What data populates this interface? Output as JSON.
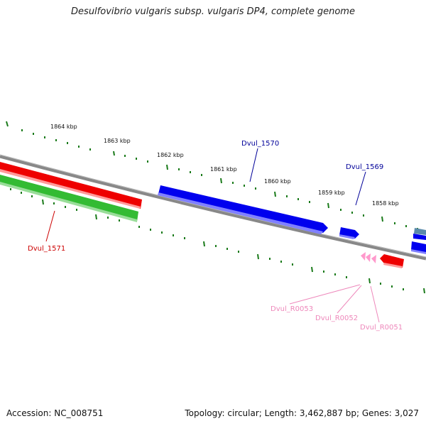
{
  "title": "Desulfovibrio vulgaris subsp. vulgaris DP4, complete genome",
  "footer": {
    "accession": "Accession: NC_008751",
    "stats": "Topology: circular; Length: 3,462,887 bp; Genes: 3,027"
  },
  "ticks": [
    "1864 kbp",
    "1863 kbp",
    "1862 kbp",
    "1861 kbp",
    "1860 kbp",
    "1859 kbp",
    "1858 kbp"
  ],
  "genes": [
    {
      "label": "Dvul_1571",
      "color": "#cc0000"
    },
    {
      "label": "Dvul_1570",
      "color": "#000099"
    },
    {
      "label": "Dvul_1569",
      "color": "#000099"
    },
    {
      "label": "Dvul_R0053",
      "color": "#ee88bb"
    },
    {
      "label": "Dvul_R0052",
      "color": "#ee88bb"
    },
    {
      "label": "Dvul_R0051",
      "color": "#ee88bb"
    }
  ],
  "colors": {
    "backbone": "#888888",
    "tick": "#1a7a1a",
    "forward_cds": "#0000ee",
    "reverse_cds_red": "#ee0000",
    "reverse_cds_green": "#33bb33",
    "rna": "#ff99cc"
  }
}
